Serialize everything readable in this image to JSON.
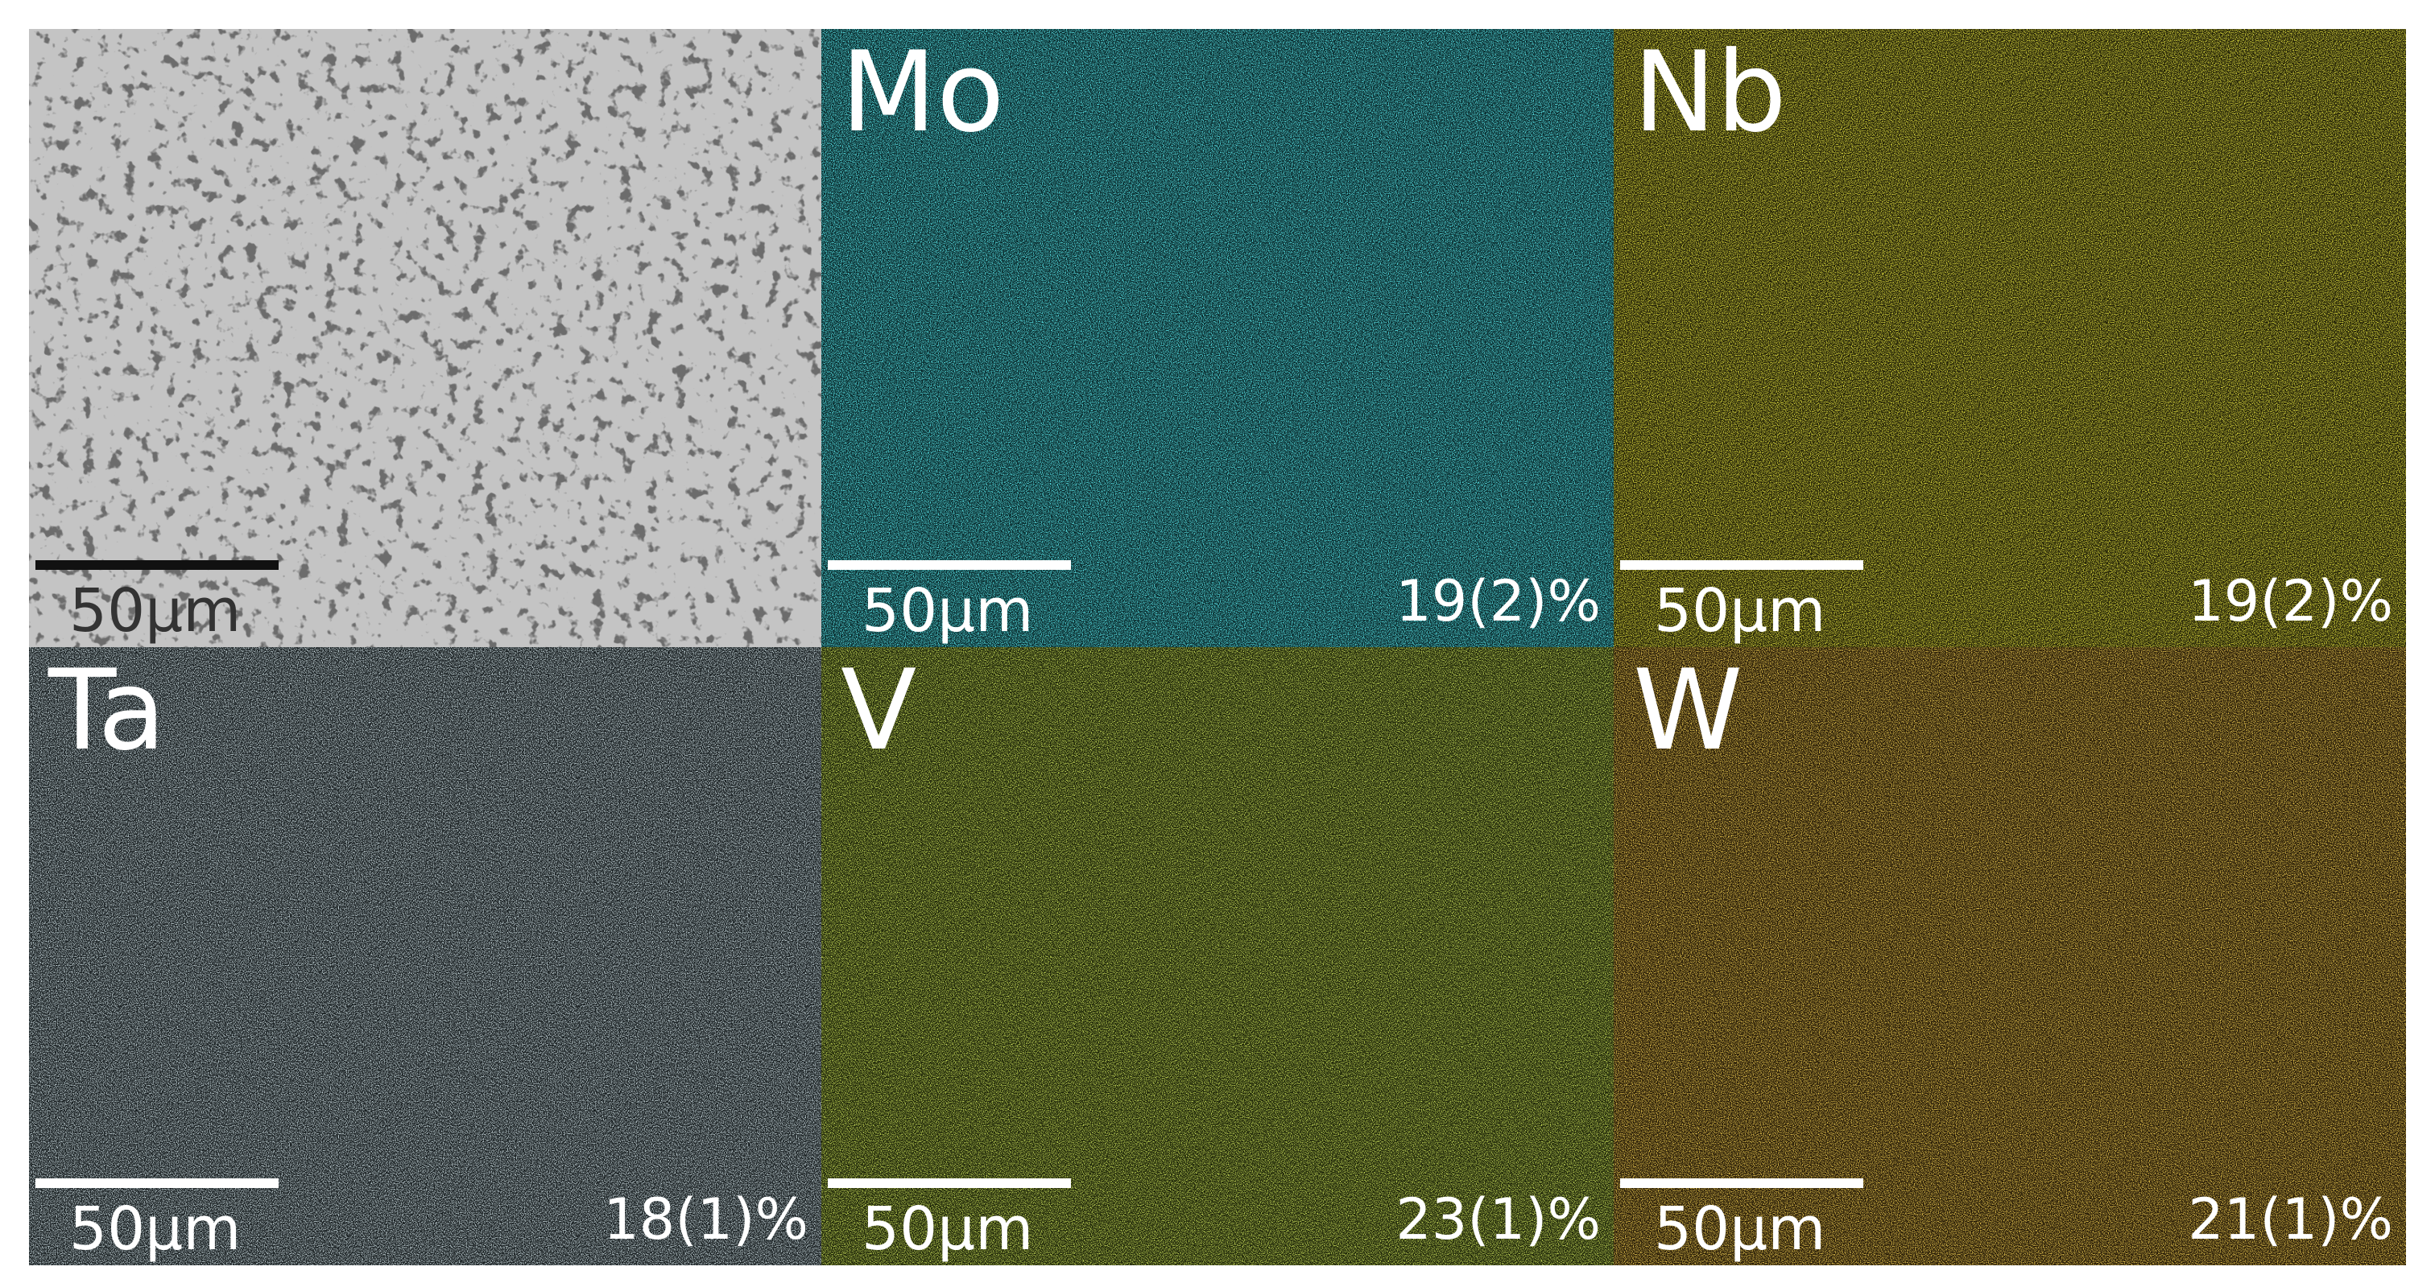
{
  "panels": [
    {
      "scale_bar": "50µm"
    },
    {
      "label": "Mo",
      "scale_bar": "50µm",
      "composition": "19(2)%"
    },
    {
      "label": "Nb",
      "scale_bar": "50µm",
      "composition": "19(2)%"
    },
    {
      "label": "Ta",
      "scale_bar": "50µm",
      "composition": "18(1)%"
    },
    {
      "label": "V",
      "scale_bar": "50µm",
      "composition": "23(1)%"
    },
    {
      "label": "W",
      "scale_bar": "50µm",
      "composition": "21(1)%"
    }
  ]
}
